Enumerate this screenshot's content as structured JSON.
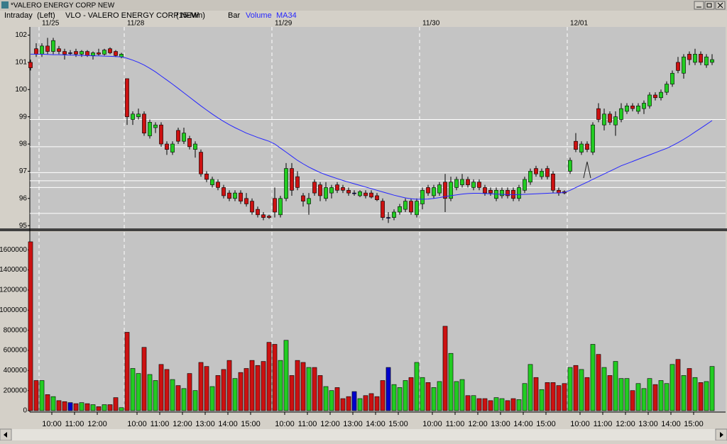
{
  "window": {
    "title": "*VALERO ENERGY CORP NEW"
  },
  "chart_data": {
    "type": "candlestick",
    "mode": "Intraday",
    "side": "(Left)",
    "title": "VLO - VALERO ENERGY CORP NEW",
    "interval": "(15-Min)",
    "style": "Bar",
    "volume_name": "Volume",
    "colors": {
      "up": "#22cc22",
      "down": "#cc1111",
      "flat": "#0000cc",
      "ma": "#2626ff",
      "level": "#ffffff"
    },
    "xlim": [
      -0.125,
      122.375
    ],
    "date_ticks": [
      {
        "value": 1.5,
        "label": "11/25"
      },
      {
        "value": 16.5,
        "label": "11/28"
      },
      {
        "value": 42.5,
        "label": "11/29"
      },
      {
        "value": 68.5,
        "label": "11/30"
      },
      {
        "value": 94.5,
        "label": "12/01"
      }
    ],
    "xticks": [
      {
        "value": 3.75,
        "label": "10:00"
      },
      {
        "value": 7.75,
        "label": "11:00"
      },
      {
        "value": 11.75,
        "label": "12:00"
      },
      {
        "value": 18.75,
        "label": "10:00"
      },
      {
        "value": 22.75,
        "label": "11:00"
      },
      {
        "value": 26.75,
        "label": "12:00"
      },
      {
        "value": 30.75,
        "label": "13:00"
      },
      {
        "value": 34.75,
        "label": "14:00"
      },
      {
        "value": 38.75,
        "label": "15:00"
      },
      {
        "value": 44.75,
        "label": "10:00"
      },
      {
        "value": 48.75,
        "label": "11:00"
      },
      {
        "value": 52.75,
        "label": "12:00"
      },
      {
        "value": 56.75,
        "label": "13:00"
      },
      {
        "value": 60.75,
        "label": "14:00"
      },
      {
        "value": 64.75,
        "label": "15:00"
      },
      {
        "value": 70.75,
        "label": "10:00"
      },
      {
        "value": 74.75,
        "label": "11:00"
      },
      {
        "value": 78.75,
        "label": "12:00"
      },
      {
        "value": 82.75,
        "label": "13:00"
      },
      {
        "value": 86.75,
        "label": "14:00"
      },
      {
        "value": 90.75,
        "label": "15:00"
      },
      {
        "value": 96.75,
        "label": "10:00"
      },
      {
        "value": 100.75,
        "label": "11:00"
      },
      {
        "value": 104.75,
        "label": "12:00"
      },
      {
        "value": 108.75,
        "label": "13:00"
      },
      {
        "value": 112.75,
        "label": "14:00"
      },
      {
        "value": 116.75,
        "label": "15:00"
      }
    ],
    "ylim": [
      94.9,
      102.3
    ],
    "yticks": [
      95,
      96,
      97,
      98,
      99,
      100,
      101,
      102
    ],
    "vlim": [
      0,
      1750000
    ],
    "vticks": [
      0,
      200000,
      400000,
      600000,
      800000,
      1000000,
      1200000,
      1400000,
      1600000
    ],
    "levels": [
      95.45,
      96.4,
      96.65,
      96.95,
      97.9,
      98.9
    ],
    "ohlc": [
      [
        101.0,
        101.1,
        100.7,
        100.8
      ],
      [
        101.5,
        101.7,
        101.2,
        101.3
      ],
      [
        101.3,
        101.7,
        101.2,
        101.6
      ],
      [
        101.6,
        101.9,
        101.3,
        101.4
      ],
      [
        101.4,
        101.9,
        101.3,
        101.8
      ],
      [
        101.5,
        101.6,
        101.3,
        101.4
      ],
      [
        101.4,
        101.5,
        101.1,
        101.3
      ],
      [
        101.35,
        101.45,
        101.25,
        101.35
      ],
      [
        101.4,
        101.5,
        101.2,
        101.3
      ],
      [
        101.3,
        101.45,
        101.2,
        101.4
      ],
      [
        101.4,
        101.45,
        101.2,
        101.25
      ],
      [
        101.25,
        101.4,
        101.1,
        101.35
      ],
      [
        101.35,
        101.5,
        101.25,
        101.3
      ],
      [
        101.3,
        101.5,
        101.25,
        101.45
      ],
      [
        101.5,
        101.55,
        101.3,
        101.35
      ],
      [
        101.4,
        101.45,
        101.2,
        101.25
      ],
      [
        101.2,
        101.35,
        101.15,
        101.3
      ],
      [
        100.4,
        100.4,
        98.7,
        99.0
      ],
      [
        98.9,
        99.2,
        98.7,
        99.1
      ],
      [
        99.0,
        99.3,
        98.9,
        99.1
      ],
      [
        99.1,
        99.2,
        98.3,
        98.4
      ],
      [
        98.3,
        98.9,
        98.2,
        98.8
      ],
      [
        98.6,
        98.8,
        98.4,
        98.7
      ],
      [
        98.7,
        98.8,
        97.9,
        98.0
      ],
      [
        98.0,
        98.1,
        97.6,
        97.8
      ],
      [
        97.7,
        98.1,
        97.6,
        98.0
      ],
      [
        98.5,
        98.6,
        98.0,
        98.1
      ],
      [
        98.1,
        98.6,
        98.0,
        98.4
      ],
      [
        98.2,
        98.3,
        97.8,
        97.9
      ],
      [
        97.8,
        98.1,
        97.5,
        98.0
      ],
      [
        97.7,
        97.8,
        96.8,
        96.9
      ],
      [
        96.9,
        97.0,
        96.6,
        96.7
      ],
      [
        96.5,
        96.8,
        96.4,
        96.7
      ],
      [
        96.6,
        96.7,
        96.3,
        96.4
      ],
      [
        96.4,
        96.5,
        96.0,
        96.1
      ],
      [
        96.2,
        96.3,
        95.9,
        96.0
      ],
      [
        96.0,
        96.3,
        95.9,
        96.2
      ],
      [
        96.2,
        96.3,
        95.8,
        95.9
      ],
      [
        96.0,
        96.2,
        95.7,
        95.8
      ],
      [
        95.9,
        96.0,
        95.4,
        95.5
      ],
      [
        95.6,
        95.7,
        95.3,
        95.4
      ],
      [
        95.4,
        95.5,
        95.2,
        95.3
      ],
      [
        95.35,
        95.4,
        95.25,
        95.3
      ],
      [
        96.0,
        96.4,
        95.3,
        95.5
      ],
      [
        95.4,
        96.1,
        95.3,
        96.0
      ],
      [
        96.0,
        97.3,
        95.9,
        97.1
      ],
      [
        97.1,
        97.3,
        96.1,
        96.3
      ],
      [
        96.8,
        97.0,
        96.3,
        96.4
      ],
      [
        96.1,
        96.2,
        95.7,
        95.9
      ],
      [
        95.8,
        96.2,
        95.4,
        96.0
      ],
      [
        96.6,
        96.7,
        96.1,
        96.2
      ],
      [
        96.5,
        96.6,
        95.9,
        96.1
      ],
      [
        96.0,
        96.6,
        95.9,
        96.4
      ],
      [
        96.2,
        96.5,
        96.0,
        96.4
      ],
      [
        96.5,
        96.6,
        96.2,
        96.3
      ],
      [
        96.4,
        96.5,
        96.2,
        96.3
      ],
      [
        96.3,
        96.4,
        96.1,
        96.2
      ],
      [
        96.2,
        96.3,
        96.1,
        96.2
      ],
      [
        96.1,
        96.3,
        96.05,
        96.25
      ],
      [
        96.2,
        96.3,
        96.0,
        96.1
      ],
      [
        96.2,
        96.3,
        96.0,
        96.05
      ],
      [
        96.1,
        96.2,
        95.9,
        95.95
      ],
      [
        95.9,
        96.0,
        95.2,
        95.3
      ],
      [
        95.3,
        95.5,
        95.1,
        95.3
      ],
      [
        95.3,
        95.6,
        95.2,
        95.5
      ],
      [
        95.5,
        95.8,
        95.4,
        95.7
      ],
      [
        95.6,
        96.0,
        95.5,
        95.9
      ],
      [
        95.9,
        96.0,
        95.4,
        95.5
      ],
      [
        95.4,
        96.0,
        95.3,
        95.9
      ],
      [
        95.8,
        96.4,
        95.6,
        96.3
      ],
      [
        96.4,
        96.5,
        96.1,
        96.2
      ],
      [
        96.1,
        96.5,
        96.0,
        96.4
      ],
      [
        96.2,
        96.6,
        96.1,
        96.5
      ],
      [
        96.6,
        96.9,
        95.5,
        96.0
      ],
      [
        96.0,
        96.8,
        95.9,
        96.6
      ],
      [
        96.4,
        96.8,
        96.3,
        96.7
      ],
      [
        96.5,
        96.9,
        96.4,
        96.7
      ],
      [
        96.7,
        96.8,
        96.4,
        96.5
      ],
      [
        96.4,
        96.7,
        96.3,
        96.6
      ],
      [
        96.6,
        96.7,
        96.3,
        96.4
      ],
      [
        96.4,
        96.5,
        96.1,
        96.2
      ],
      [
        96.3,
        96.4,
        96.1,
        96.2
      ],
      [
        96.0,
        96.4,
        95.9,
        96.3
      ],
      [
        96.1,
        96.4,
        96.0,
        96.3
      ],
      [
        96.3,
        96.4,
        96.0,
        96.1
      ],
      [
        96.3,
        96.4,
        95.9,
        96.0
      ],
      [
        96.0,
        96.5,
        95.9,
        96.4
      ],
      [
        96.3,
        96.8,
        96.2,
        96.7
      ],
      [
        96.6,
        97.1,
        96.5,
        97.0
      ],
      [
        97.1,
        97.2,
        96.8,
        96.9
      ],
      [
        96.8,
        97.1,
        96.7,
        97.0
      ],
      [
        97.1,
        97.2,
        96.7,
        96.8
      ],
      [
        96.9,
        97.0,
        96.2,
        96.3
      ],
      [
        96.3,
        96.4,
        96.1,
        96.2
      ],
      [
        96.25,
        96.3,
        96.15,
        96.2
      ],
      [
        97.0,
        97.5,
        96.9,
        97.4
      ],
      [
        98.1,
        98.4,
        97.7,
        97.8
      ],
      [
        97.7,
        98.1,
        97.6,
        98.0
      ],
      [
        98.0,
        98.1,
        97.7,
        97.8
      ],
      [
        97.7,
        98.8,
        97.6,
        98.7
      ],
      [
        99.3,
        99.5,
        98.8,
        98.9
      ],
      [
        98.7,
        99.3,
        98.5,
        99.1
      ],
      [
        99.1,
        99.2,
        98.7,
        98.8
      ],
      [
        98.7,
        99.2,
        98.3,
        99.0
      ],
      [
        98.9,
        99.5,
        98.8,
        99.3
      ],
      [
        99.2,
        99.5,
        99.1,
        99.4
      ],
      [
        99.4,
        99.5,
        99.2,
        99.3
      ],
      [
        99.2,
        99.5,
        99.1,
        99.4
      ],
      [
        99.3,
        99.6,
        99.1,
        99.5
      ],
      [
        99.4,
        99.9,
        99.3,
        99.8
      ],
      [
        99.8,
        99.9,
        99.6,
        99.7
      ],
      [
        99.7,
        100.0,
        99.6,
        99.9
      ],
      [
        99.9,
        100.3,
        99.8,
        100.2
      ],
      [
        100.2,
        100.7,
        100.1,
        100.6
      ],
      [
        101.0,
        101.2,
        100.6,
        100.7
      ],
      [
        100.6,
        101.3,
        100.4,
        101.2
      ],
      [
        101.3,
        101.4,
        100.9,
        101.1
      ],
      [
        101.0,
        101.5,
        100.9,
        101.3
      ],
      [
        101.3,
        101.4,
        100.9,
        101.0
      ],
      [
        100.9,
        101.3,
        100.8,
        101.2
      ],
      [
        101.0,
        101.3,
        100.9,
        101.1
      ]
    ],
    "volume": [
      1680000,
      300000,
      300000,
      160000,
      140000,
      100000,
      90000,
      80000,
      70000,
      80000,
      70000,
      60000,
      40000,
      60000,
      60000,
      130000,
      30000,
      780000,
      420000,
      370000,
      630000,
      360000,
      300000,
      460000,
      410000,
      310000,
      250000,
      220000,
      370000,
      200000,
      480000,
      440000,
      240000,
      350000,
      410000,
      500000,
      320000,
      380000,
      420000,
      500000,
      450000,
      490000,
      680000,
      660000,
      500000,
      700000,
      350000,
      500000,
      480000,
      430000,
      430000,
      350000,
      240000,
      200000,
      230000,
      120000,
      140000,
      190000,
      120000,
      150000,
      170000,
      140000,
      300000,
      430000,
      260000,
      230000,
      300000,
      330000,
      480000,
      330000,
      280000,
      230000,
      290000,
      840000,
      570000,
      290000,
      310000,
      150000,
      150000,
      120000,
      120000,
      100000,
      130000,
      120000,
      100000,
      120000,
      110000,
      270000,
      460000,
      330000,
      210000,
      280000,
      280000,
      250000,
      270000,
      430000,
      450000,
      410000,
      330000,
      660000,
      560000,
      430000,
      350000,
      490000,
      320000,
      320000,
      200000,
      270000,
      220000,
      320000,
      260000,
      300000,
      270000,
      460000,
      510000,
      350000,
      420000,
      330000,
      280000,
      290000,
      440000
    ],
    "ma": {
      "name": "MA34",
      "values": [
        101.3,
        101.3,
        101.3,
        101.29,
        101.28,
        101.28,
        101.27,
        101.27,
        101.26,
        101.25,
        101.25,
        101.24,
        101.24,
        101.23,
        101.22,
        101.21,
        101.2,
        101.15,
        101.08,
        101.0,
        100.9,
        100.78,
        100.65,
        100.5,
        100.35,
        100.2,
        100.04,
        99.88,
        99.72,
        99.56,
        99.4,
        99.25,
        99.1,
        98.96,
        98.83,
        98.71,
        98.6,
        98.5,
        98.4,
        98.32,
        98.24,
        98.17,
        98.1,
        98.0,
        97.85,
        97.7,
        97.55,
        97.4,
        97.27,
        97.15,
        97.05,
        96.95,
        96.87,
        96.8,
        96.73,
        96.66,
        96.6,
        96.54,
        96.48,
        96.42,
        96.36,
        96.3,
        96.24,
        96.18,
        96.12,
        96.07,
        96.02,
        95.99,
        95.97,
        95.97,
        95.98,
        96.0,
        96.03,
        96.07,
        96.1,
        96.13,
        96.16,
        96.18,
        96.19,
        96.19,
        96.18,
        96.17,
        96.16,
        96.15,
        96.14,
        96.14,
        96.14,
        96.15,
        96.16,
        96.17,
        96.18,
        96.19,
        96.2,
        96.2,
        96.22,
        96.3,
        96.4,
        96.5,
        96.6,
        96.7,
        96.8,
        96.9,
        97.0,
        97.1,
        97.2,
        97.28,
        97.36,
        97.44,
        97.52,
        97.6,
        97.68,
        97.76,
        97.84,
        97.94,
        98.05,
        98.17,
        98.3,
        98.44,
        98.58,
        98.72,
        98.86
      ]
    }
  }
}
